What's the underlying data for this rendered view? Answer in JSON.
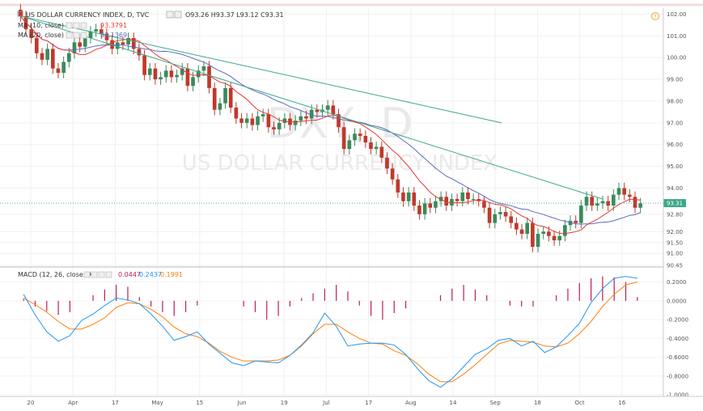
{
  "header": {
    "title": "US DOLLAR CURRENCY INDEX, D, TVC",
    "ohlc": "O93.26  H93.37  L93.12  C93.31",
    "sma10_label": "MA (10, close)",
    "sma10_value": "93.3791",
    "sma20_label": "MA (20, close)",
    "sma20_value": "93.1369",
    "macd_label": "MACD (12, 26, close, 9)",
    "macd_hist_value": "0.0447",
    "macd_line_value": "0.2437",
    "macd_signal_value": "0.1991"
  },
  "watermark": {
    "symbol": "DXY, D",
    "name": "US DOLLAR CURRENCY INDEX"
  },
  "colors": {
    "up": "#3a8a5c",
    "down": "#c0392b",
    "sma10": "#e53935",
    "sma20": "#5c6bc0",
    "trendline": "#3ea78a",
    "macd_line": "#2196f3",
    "signal_line": "#ff7f0e",
    "histogram": "#c2185b",
    "price_label_bg": "#3ea78a"
  },
  "chart_data": [
    {
      "type": "candlestick",
      "ylim": [
        90.45,
        102.2
      ],
      "yticks": [
        "102.00",
        "101.00",
        "100.00",
        "99.00",
        "98.00",
        "97.00",
        "96.00",
        "95.00",
        "94.00",
        "93.31",
        "92.80",
        "92.00",
        "91.50",
        "91.00",
        "90.45"
      ],
      "last_price": "93.31",
      "xticks": [
        "20",
        "Apr",
        "17",
        "May",
        "15",
        "Jun",
        "19",
        "Jul",
        "17",
        "Aug",
        "14",
        "Sep",
        "18",
        "Oct",
        "16"
      ],
      "closes": [
        101.9,
        101.3,
        100.9,
        100.2,
        99.9,
        100.4,
        99.5,
        99.3,
        99.8,
        100.2,
        100.7,
        100.5,
        100.9,
        101.2,
        101.3,
        101.1,
        100.8,
        100.4,
        100.7,
        100.6,
        100.9,
        100.4,
        100.1,
        99.2,
        99.5,
        99.0,
        99.1,
        99.4,
        99.1,
        99.2,
        99.5,
        98.7,
        99.1,
        99.4,
        99.6,
        98.6,
        97.6,
        97.9,
        98.6,
        97.7,
        97.2,
        97.0,
        97.2,
        96.9,
        97.3,
        97.4,
        96.8,
        96.7,
        97.0,
        97.2,
        96.9,
        97.1,
        97.3,
        97.2,
        97.6,
        97.5,
        97.6,
        97.8,
        97.4,
        96.8,
        95.8,
        96.2,
        96.5,
        96.4,
        96.1,
        95.8,
        95.9,
        95.4,
        94.9,
        94.4,
        93.8,
        93.4,
        93.8,
        93.2,
        92.8,
        93.3,
        93.1,
        93.4,
        93.6,
        93.2,
        93.5,
        93.4,
        93.8,
        93.5,
        93.5,
        93.4,
        93.1,
        92.4,
        92.8,
        92.9,
        92.7,
        92.4,
        92.1,
        91.9,
        92.4,
        91.3,
        91.9,
        92.0,
        91.8,
        91.6,
        91.8,
        92.3,
        92.5,
        92.4,
        93.2,
        93.6,
        93.2,
        93.3,
        93.4,
        93.2,
        93.7,
        94.0,
        93.7,
        93.6,
        93.1,
        93.3
      ],
      "sma10_value": 93.3791,
      "sma20_value": 93.1369,
      "trendlines": [
        {
          "from": [
            "20",
            101.9
          ],
          "to": [
            "Sep",
            97.0
          ]
        },
        {
          "from": [
            "20",
            101.9
          ],
          "to": [
            "Oct",
            93.5
          ]
        }
      ]
    },
    {
      "type": "line",
      "title": "MACD (12, 26, close, 9)",
      "ylim": [
        -1.0,
        0.3
      ],
      "yticks": [
        "0.2000",
        "0.0000",
        "-0.2000",
        "-0.4000",
        "-0.6000",
        "-0.8000",
        "-1.0000"
      ],
      "series": [
        {
          "name": "MACD",
          "values": [
            0.07,
            -0.15,
            -0.33,
            -0.43,
            -0.37,
            -0.21,
            -0.14,
            -0.05,
            0.03,
            0.01,
            -0.03,
            -0.14,
            -0.27,
            -0.42,
            -0.38,
            -0.33,
            -0.46,
            -0.56,
            -0.66,
            -0.69,
            -0.64,
            -0.65,
            -0.66,
            -0.58,
            -0.47,
            -0.34,
            -0.13,
            -0.27,
            -0.48,
            -0.46,
            -0.45,
            -0.45,
            -0.47,
            -0.57,
            -0.72,
            -0.85,
            -0.92,
            -0.83,
            -0.7,
            -0.57,
            -0.51,
            -0.42,
            -0.4,
            -0.48,
            -0.43,
            -0.55,
            -0.49,
            -0.37,
            -0.24,
            -0.02,
            0.13,
            0.24,
            0.26,
            0.24
          ]
        },
        {
          "name": "Signal",
          "values": [
            0.03,
            -0.04,
            -0.12,
            -0.22,
            -0.3,
            -0.3,
            -0.25,
            -0.18,
            -0.07,
            -0.02,
            -0.03,
            -0.09,
            -0.17,
            -0.28,
            -0.35,
            -0.38,
            -0.45,
            -0.54,
            -0.6,
            -0.64,
            -0.64,
            -0.64,
            -0.63,
            -0.58,
            -0.48,
            -0.35,
            -0.25,
            -0.25,
            -0.33,
            -0.4,
            -0.45,
            -0.46,
            -0.53,
            -0.58,
            -0.67,
            -0.78,
            -0.86,
            -0.86,
            -0.78,
            -0.68,
            -0.57,
            -0.46,
            -0.42,
            -0.43,
            -0.44,
            -0.48,
            -0.49,
            -0.45,
            -0.35,
            -0.22,
            -0.06,
            0.07,
            0.17,
            0.2
          ]
        },
        {
          "name": "Histogram",
          "values": [
            0.02,
            -0.06,
            -0.11,
            -0.15,
            -0.12,
            0.0,
            0.06,
            0.12,
            0.17,
            0.15,
            0.04,
            -0.06,
            -0.12,
            -0.16,
            -0.12,
            -0.05,
            0.0,
            0.0,
            0.0,
            -0.06,
            -0.12,
            -0.2,
            -0.16,
            -0.06,
            0.03,
            0.08,
            0.13,
            0.17,
            0.1,
            -0.05,
            -0.16,
            -0.2,
            -0.13,
            -0.08,
            0.0,
            0.0,
            0.06,
            0.13,
            0.17,
            0.12,
            0.06,
            0.0,
            -0.05,
            -0.06,
            -0.06,
            0.0,
            0.06,
            0.13,
            0.19,
            0.24,
            0.26,
            0.25,
            0.2,
            0.04
          ]
        }
      ]
    }
  ]
}
